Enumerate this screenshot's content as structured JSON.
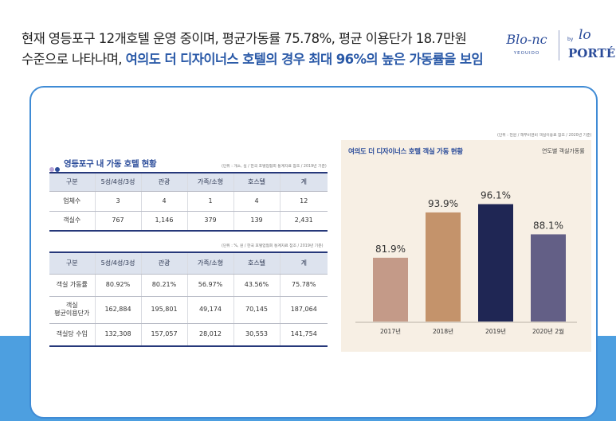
{
  "headline": {
    "line1": "현재 영등포구 12개호텔 운영 중이며, 평균가동률 75.78%, 평균 이용단가 18.7만원",
    "line2_plain": "수준으로 나타나며, ",
    "line2_highlight": "여의도 더 디자이너스 호텔의 경우 최대 96%의 높은 가동률을 보임"
  },
  "brands": {
    "blanc": "Blo-nc",
    "blanc_sub": "YEOUIDO",
    "by": "by",
    "la": "lo",
    "porte": "PORTÉ"
  },
  "table_section": {
    "title": "영등포구 내 가동 호텔 현황",
    "note1": "(단위 : 개소, 실 / 한국 호텔업협회 통계자료 참조 / 2019년 기준)",
    "note2": "(단위 : %, 원 / 한국 호텔업협회 통계자료 참조 / 2019년 기준)"
  },
  "table1": {
    "headers": [
      "구분",
      "5성/4성/3성",
      "관광",
      "가족/소형",
      "호스텔",
      "계"
    ],
    "rows": [
      [
        "업체수",
        "3",
        "4",
        "1",
        "4",
        "12"
      ],
      [
        "객실수",
        "767",
        "1,146",
        "379",
        "139",
        "2,431"
      ]
    ]
  },
  "table2": {
    "headers": [
      "구분",
      "5성/4성/3성",
      "관광",
      "가족/소형",
      "호스텔",
      "계"
    ],
    "rows": [
      [
        "객실 가동률",
        "80.92%",
        "80.21%",
        "56.97%",
        "43.56%",
        "75.78%"
      ],
      [
        "객실\n평균이용단가",
        "162,884",
        "195,801",
        "49,174",
        "70,145",
        "187,064"
      ],
      [
        "객실당 수입",
        "132,308",
        "157,057",
        "28,012",
        "30,553",
        "141,754"
      ]
    ]
  },
  "chart_note": "(단위 : 천원 / 해부비엔비 객실이용료 참조 / 2020년 기준)",
  "colors": {
    "accent": "#2b5aa8",
    "panel_border": "#3f8bd5",
    "bottom_band": "#4d9fe0",
    "chart_bg": "#f7efe4",
    "table_rule": "#26387a",
    "table_header_bg": "#dde3ee"
  },
  "chart_data": {
    "type": "bar",
    "title": "여의도 더 디자이너스 호텔 객실 가동 현황",
    "subtitle": "연도별 객실가동률",
    "categories": [
      "2017년",
      "2018년",
      "2019년",
      "2020년 2월"
    ],
    "values": [
      81.9,
      93.9,
      96.1,
      88.1
    ],
    "value_labels": [
      "81.9%",
      "93.9%",
      "96.1%",
      "88.1%"
    ],
    "bar_colors": [
      "#c49a88",
      "#c4936b",
      "#1f2654",
      "#635f86"
    ],
    "ylim": [
      65,
      100
    ],
    "grid": false,
    "legend": "none"
  }
}
